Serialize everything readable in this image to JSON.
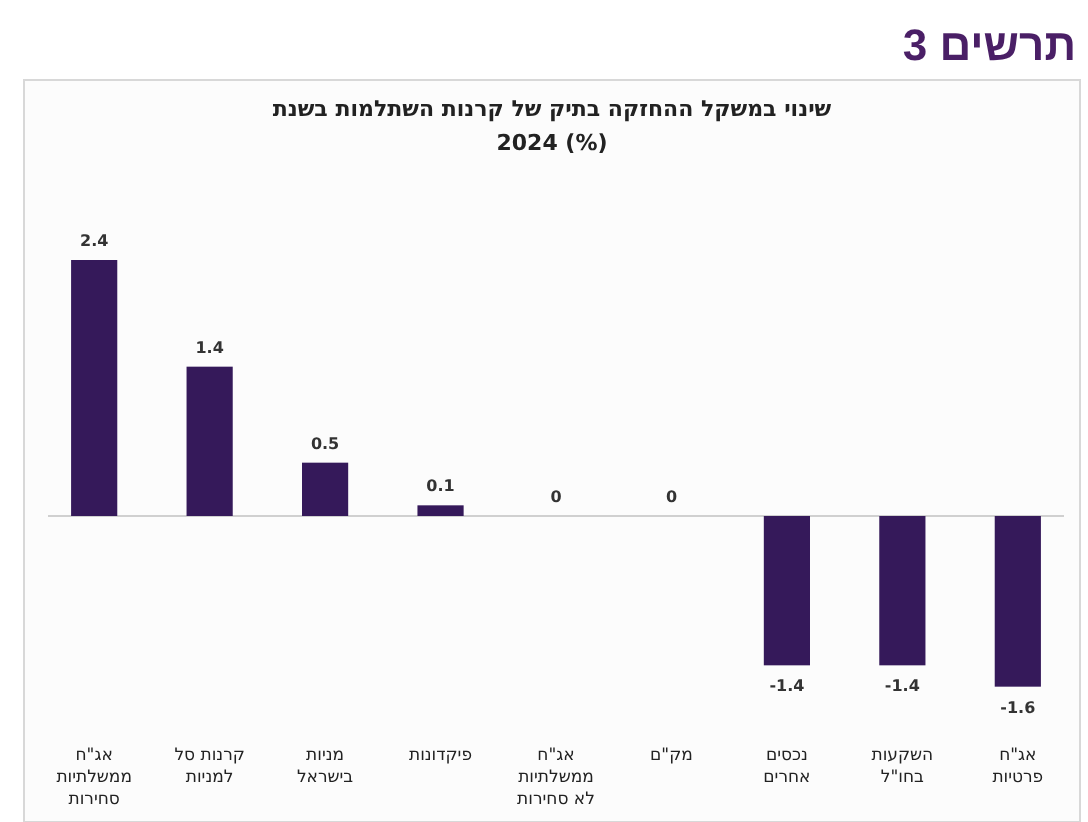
{
  "chart_data": {
    "type": "bar",
    "title": "תרשים 3",
    "subtitle": "שינוי במשקל ההחזקה בתיק של קרנות השתלמות בשנת\n2024 (%)",
    "categories": [
      "אג\"ח\nממשלתיות\nסחירות",
      "קרנות סל\nלמניות",
      "מניות\nבישראל",
      "פיקדונות",
      "אג\"ח\nממשלתיות\nלא סחירות",
      "מק\"ם",
      "נכסים\nאחרים",
      "השקעות\nבחו\"ל",
      "אג\"ח\nפרטיות"
    ],
    "values": [
      2.4,
      1.4,
      0.5,
      0.1,
      0,
      0,
      -1.4,
      -1.4,
      -1.6
    ],
    "color": "#35195a",
    "data_labels": true
  }
}
